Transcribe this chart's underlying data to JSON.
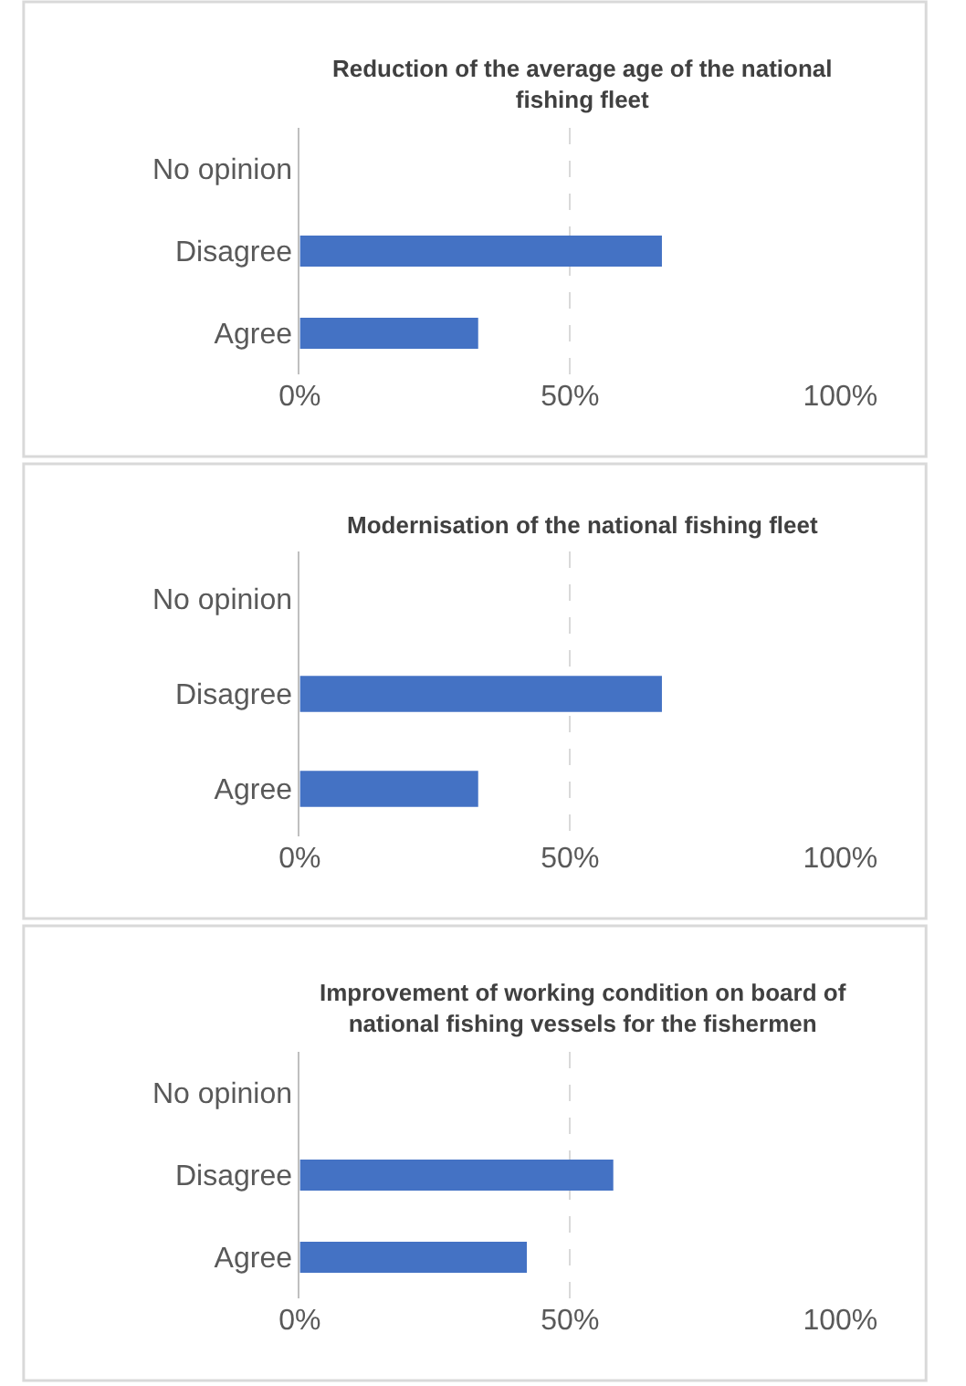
{
  "chart_data": [
    {
      "type": "bar",
      "orientation": "horizontal",
      "title": "Reduction of the average age of the national fishing fleet",
      "categories": [
        "No opinion",
        "Disagree",
        "Agree"
      ],
      "series": [
        {
          "color": "#4472c4",
          "values": [
            0,
            67,
            33
          ]
        }
      ],
      "xlim": [
        0,
        100
      ],
      "xticks": [
        {
          "value": 0,
          "label": "0%"
        },
        {
          "value": 50,
          "label": "50%"
        },
        {
          "value": 100,
          "label": "100%"
        }
      ],
      "grid": "x"
    },
    {
      "type": "bar",
      "orientation": "horizontal",
      "title": "Modernisation of the national fishing fleet",
      "categories": [
        "No opinion",
        "Disagree",
        "Agree"
      ],
      "series": [
        {
          "color": "#4472c4",
          "values": [
            0,
            67,
            33
          ]
        }
      ],
      "xlim": [
        0,
        100
      ],
      "xticks": [
        {
          "value": 0,
          "label": "0%"
        },
        {
          "value": 50,
          "label": "50%"
        },
        {
          "value": 100,
          "label": "100%"
        }
      ],
      "grid": "x"
    },
    {
      "type": "bar",
      "orientation": "horizontal",
      "title": "Improvement of working condition on board of national fishing vessels for the fishermen",
      "categories": [
        "No opinion",
        "Disagree",
        "Agree"
      ],
      "series": [
        {
          "color": "#4472c4",
          "values": [
            0,
            58,
            42
          ]
        }
      ],
      "xlim": [
        0,
        100
      ],
      "xticks": [
        {
          "value": 0,
          "label": "0%"
        },
        {
          "value": 50,
          "label": "50%"
        },
        {
          "value": 100,
          "label": "100%"
        }
      ],
      "grid": "x"
    }
  ]
}
